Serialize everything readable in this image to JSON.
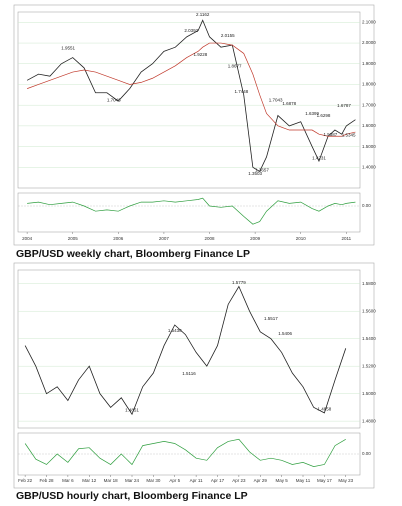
{
  "chart_data": [
    {
      "type": "line",
      "caption": "GBP/USD weekly chart, Bloomberg Finance LP",
      "x": [
        2004,
        2004.25,
        2004.5,
        2004.75,
        2005,
        2005.25,
        2005.5,
        2005.75,
        2006,
        2006.25,
        2006.5,
        2006.75,
        2007,
        2007.25,
        2007.5,
        2007.75,
        2007.85,
        2008,
        2008.25,
        2008.5,
        2008.75,
        2008.95,
        2009.1,
        2009.25,
        2009.5,
        2009.75,
        2010,
        2010.25,
        2010.4,
        2010.6,
        2010.75,
        2010.9,
        2011,
        2011.2
      ],
      "series": [
        {
          "color": "#222222",
          "values": [
            1.82,
            1.85,
            1.84,
            1.9,
            1.93,
            1.88,
            1.76,
            1.76,
            1.72,
            1.78,
            1.86,
            1.9,
            1.96,
            1.98,
            2.03,
            2.06,
            2.11,
            2.03,
            1.98,
            1.99,
            1.75,
            1.4,
            1.38,
            1.45,
            1.65,
            1.6,
            1.62,
            1.5,
            1.43,
            1.55,
            1.58,
            1.56,
            1.6,
            1.63
          ]
        },
        {
          "color": "#c0392b",
          "values": [
            1.78,
            1.8,
            1.82,
            1.84,
            1.86,
            1.87,
            1.86,
            1.84,
            1.82,
            1.8,
            1.81,
            1.83,
            1.86,
            1.89,
            1.93,
            1.96,
            1.98,
            2.0,
            2.0,
            1.99,
            1.95,
            1.85,
            1.75,
            1.66,
            1.6,
            1.58,
            1.58,
            1.58,
            1.56,
            1.55,
            1.55,
            1.55,
            1.56,
            1.57
          ]
        },
        {
          "color": "#2e9e3e",
          "axis": "y2",
          "values": [
            0.02,
            0.03,
            0.01,
            0.02,
            0.03,
            0.0,
            -0.04,
            -0.03,
            -0.04,
            0.0,
            0.03,
            0.03,
            0.04,
            0.03,
            0.04,
            0.05,
            0.06,
            0.0,
            -0.01,
            0.0,
            -0.08,
            -0.14,
            -0.12,
            -0.04,
            0.04,
            0.02,
            0.03,
            -0.02,
            -0.04,
            0.0,
            0.02,
            0.01,
            0.02,
            0.03
          ]
        }
      ],
      "annotations": [
        {
          "x": 2004.9,
          "value": 1.9551
        },
        {
          "x": 2005.9,
          "value": 1.7046
        },
        {
          "x": 2007.85,
          "value": 2.1162
        },
        {
          "x": 2007.6,
          "value": 2.0393
        },
        {
          "x": 2008.4,
          "value": 2.0155
        },
        {
          "x": 2007.8,
          "value": 1.9228
        },
        {
          "x": 2008.55,
          "value": 1.8677
        },
        {
          "x": 2008.7,
          "value": 1.7448
        },
        {
          "x": 2009.45,
          "value": 1.7043
        },
        {
          "x": 2009.75,
          "value": 1.6878
        },
        {
          "x": 2010.25,
          "value": 1.6399
        },
        {
          "x": 2010.5,
          "value": 1.6298
        },
        {
          "x": 2010.95,
          "value": 1.6787
        },
        {
          "x": 2009.0,
          "value": 1.3503
        },
        {
          "x": 2009.15,
          "value": 1.3657
        },
        {
          "x": 2010.4,
          "value": 1.4231
        },
        {
          "x": 2010.65,
          "value": 1.5387
        },
        {
          "x": 2011.05,
          "value": 1.5345
        }
      ],
      "xlim": [
        2003.8,
        2011.3
      ],
      "xticks": [
        2004,
        2005,
        2006,
        2007,
        2008,
        2009,
        2010,
        2011
      ],
      "ylim": [
        1.3,
        2.15
      ],
      "yticks": [
        {
          "value": 1.4,
          "label": "1.4000"
        },
        {
          "value": 1.5,
          "label": "1.5000"
        },
        {
          "value": 1.6,
          "label": "1.6000"
        },
        {
          "value": 1.7,
          "label": "1.7000"
        },
        {
          "value": 1.8,
          "label": "1.8000"
        },
        {
          "value": 1.9,
          "label": "1.9000"
        },
        {
          "value": 2.0,
          "label": "2.0000"
        },
        {
          "value": 2.1,
          "label": "2.1000"
        }
      ],
      "y2lim": [
        -0.2,
        0.1
      ],
      "y2ticks": [
        {
          "value": 0,
          "label": "0.00"
        }
      ],
      "grid": true
    },
    {
      "type": "line",
      "caption": "GBP/USD hourly chart, Bloomberg Finance LP",
      "x": [
        0,
        3,
        6,
        9,
        12,
        15,
        18,
        21,
        24,
        27,
        30,
        33,
        36,
        39,
        42,
        45,
        48,
        51,
        54,
        57,
        60,
        63,
        66,
        69,
        72,
        75,
        78,
        81,
        84,
        87,
        90
      ],
      "series": [
        {
          "color": "#222222",
          "values": [
            1.535,
            1.52,
            1.5,
            1.505,
            1.495,
            1.51,
            1.52,
            1.5,
            1.49,
            1.497,
            1.485,
            1.505,
            1.515,
            1.535,
            1.55,
            1.543,
            1.53,
            1.52,
            1.535,
            1.565,
            1.578,
            1.56,
            1.545,
            1.54,
            1.53,
            1.515,
            1.505,
            1.49,
            1.486,
            1.51,
            1.533
          ]
        },
        {
          "color": "#2e9e3e",
          "axis": "y2",
          "values": [
            0.01,
            -0.005,
            -0.01,
            0.0,
            -0.008,
            0.005,
            0.006,
            -0.004,
            -0.01,
            0.0,
            -0.01,
            0.008,
            0.01,
            0.012,
            0.01,
            0.004,
            -0.004,
            -0.006,
            0.006,
            0.012,
            0.014,
            0.002,
            -0.006,
            -0.004,
            -0.006,
            -0.01,
            -0.008,
            -0.012,
            -0.01,
            0.008,
            0.014
          ]
        }
      ],
      "annotations": [
        {
          "x": 30,
          "value": 1.4851
        },
        {
          "x": 42,
          "value": 1.543,
          "label": "1.5430"
        },
        {
          "x": 46,
          "value": 1.5116
        },
        {
          "x": 60,
          "value": 1.5779
        },
        {
          "x": 69,
          "value": 1.5517
        },
        {
          "x": 73,
          "value": 1.5406
        },
        {
          "x": 84,
          "value": 1.4858
        }
      ],
      "xlim": [
        -2,
        94
      ],
      "xticks": [
        {
          "value": 0,
          "label": "Feb 22"
        },
        {
          "value": 6,
          "label": "Feb 28"
        },
        {
          "value": 12,
          "label": "Mar 6"
        },
        {
          "value": 18,
          "label": "Mar 12"
        },
        {
          "value": 24,
          "label": "Mar 18"
        },
        {
          "value": 30,
          "label": "Mar 24"
        },
        {
          "value": 36,
          "label": "Mar 30"
        },
        {
          "value": 42,
          "label": "Apr 5"
        },
        {
          "value": 48,
          "label": "Apr 11"
        },
        {
          "value": 54,
          "label": "Apr 17"
        },
        {
          "value": 60,
          "label": "Apr 23"
        },
        {
          "value": 66,
          "label": "Apr 29"
        },
        {
          "value": 72,
          "label": "May 5"
        },
        {
          "value": 78,
          "label": "May 11"
        },
        {
          "value": 84,
          "label": "May 17"
        },
        {
          "value": 90,
          "label": "May 23"
        }
      ],
      "ylim": [
        1.475,
        1.59
      ],
      "yticks": [
        {
          "value": 1.48,
          "label": "1.4800"
        },
        {
          "value": 1.5,
          "label": "1.5000"
        },
        {
          "value": 1.52,
          "label": "1.5200"
        },
        {
          "value": 1.54,
          "label": "1.5400"
        },
        {
          "value": 1.56,
          "label": "1.5600"
        },
        {
          "value": 1.58,
          "label": "1.5800"
        }
      ],
      "y2lim": [
        -0.02,
        0.02
      ],
      "y2ticks": [
        {
          "value": 0,
          "label": "0.00"
        }
      ],
      "grid": true
    }
  ]
}
